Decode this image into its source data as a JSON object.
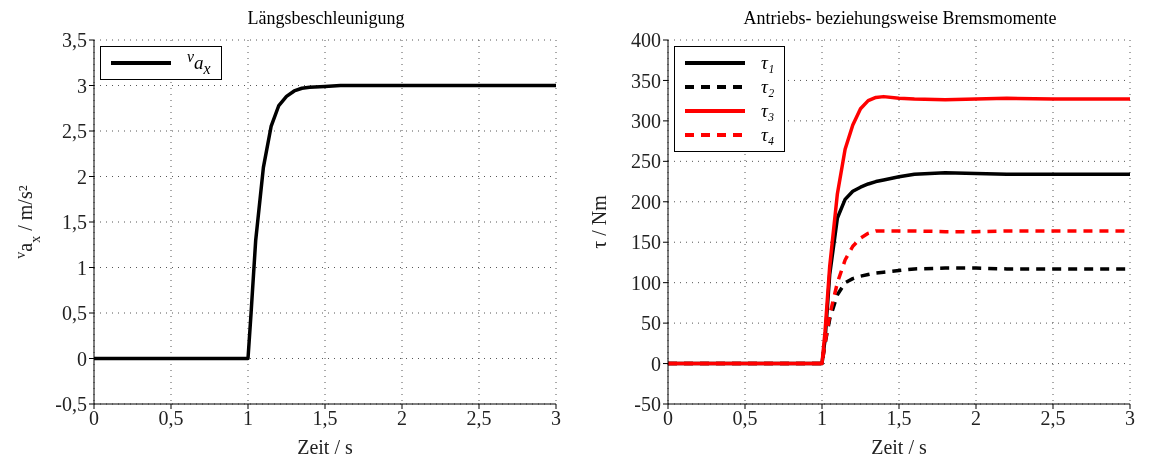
{
  "chart_data": [
    {
      "type": "line",
      "title": "Längsbeschleunigung",
      "xlabel": "Zeit / s",
      "ylabel": "$^{v}$a$_{x}$ / m/s²",
      "x": [
        0,
        1,
        1.02,
        1.05,
        1.1,
        1.15,
        1.2,
        1.25,
        1.3,
        1.35,
        1.4,
        1.5,
        1.6,
        1.8,
        2,
        2.2,
        2.5,
        3
      ],
      "series": [
        {
          "name": "$^{v}$a$_{x}$",
          "color": "#000000",
          "line_style": "solid",
          "values": [
            0,
            0,
            0.5,
            1.3,
            2.1,
            2.55,
            2.78,
            2.88,
            2.94,
            2.97,
            2.98,
            2.99,
            3,
            3,
            3,
            3,
            3,
            3
          ]
        }
      ],
      "xlim": [
        0,
        3
      ],
      "xticks": [
        0,
        {
          "value": 0.5,
          "label": "0,5"
        },
        1,
        {
          "value": 1.5,
          "label": "1,5"
        },
        2,
        {
          "value": 2.5,
          "label": "2,5"
        },
        3
      ],
      "ylim": [
        -0.5,
        3.5
      ],
      "yticks": [
        {
          "value": -0.5,
          "label": "-0,5"
        },
        0,
        {
          "value": 0.5,
          "label": "0,5"
        },
        1,
        {
          "value": 1.5,
          "label": "1,5"
        },
        2,
        {
          "value": 2.5,
          "label": "2,5"
        },
        3,
        {
          "value": 3.5,
          "label": "3,5"
        }
      ],
      "grid": true,
      "legend": "top left",
      "marker": "none"
    },
    {
      "type": "line",
      "title": "Antriebs- beziehungsweise Bremsmomente",
      "xlabel": "Zeit / s",
      "ylabel": "τ / Nm",
      "x": [
        0,
        1,
        1.02,
        1.05,
        1.1,
        1.15,
        1.2,
        1.25,
        1.3,
        1.35,
        1.4,
        1.5,
        1.6,
        1.8,
        2,
        2.2,
        2.5,
        3
      ],
      "series": [
        {
          "name": "τ₁",
          "color": "#000000",
          "line_style": "solid",
          "values": [
            0,
            0,
            30,
            110,
            180,
            203,
            213,
            218,
            222,
            225,
            227,
            231,
            234,
            236,
            235,
            234,
            234,
            234
          ]
        },
        {
          "name": "τ₂",
          "color": "#000000",
          "line_style": "dashed",
          "values": [
            0,
            0,
            25,
            55,
            85,
            100,
            105,
            108,
            110,
            112,
            113,
            115,
            117,
            118,
            118,
            117,
            117,
            117
          ]
        },
        {
          "name": "τ₃",
          "color": "#ff0000",
          "line_style": "solid",
          "values": [
            0,
            0,
            40,
            120,
            210,
            265,
            295,
            315,
            325,
            329,
            330,
            328,
            327,
            326,
            327,
            328,
            327,
            327
          ]
        },
        {
          "name": "τ₄",
          "color": "#ff0000",
          "line_style": "dashed",
          "values": [
            0,
            0,
            25,
            60,
            100,
            128,
            145,
            155,
            161,
            164,
            164,
            164,
            164,
            163,
            163,
            164,
            164,
            164
          ]
        }
      ],
      "xlim": [
        0,
        3
      ],
      "xticks": [
        0,
        {
          "value": 0.5,
          "label": "0,5"
        },
        1,
        {
          "value": 1.5,
          "label": "1,5"
        },
        2,
        {
          "value": 2.5,
          "label": "2,5"
        },
        3
      ],
      "ylim": [
        -50,
        400
      ],
      "yticks": [
        -50,
        0,
        50,
        100,
        150,
        200,
        250,
        300,
        350,
        400
      ],
      "grid": true,
      "legend": "top left",
      "marker": "none"
    }
  ]
}
